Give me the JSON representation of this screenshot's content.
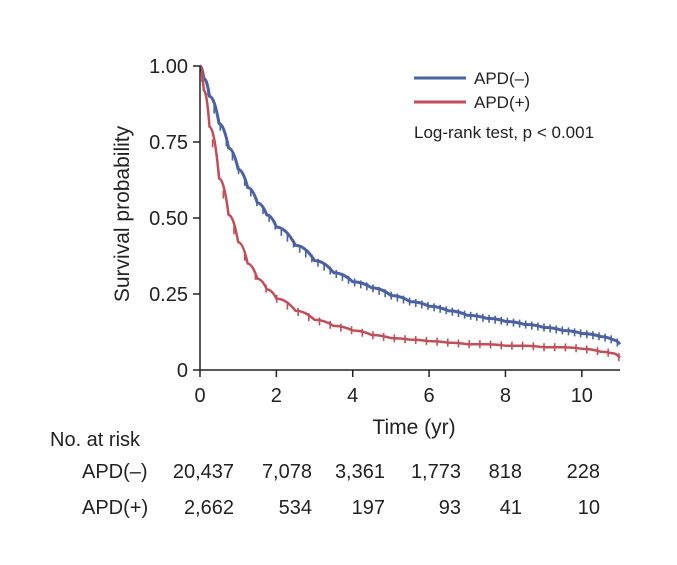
{
  "chart_data": {
    "type": "line",
    "subtype": "kaplan-meier",
    "title": "",
    "xlabel": "Time (yr)",
    "ylabel": "Survival probability",
    "xlim": [
      0,
      11
    ],
    "ylim": [
      0,
      1
    ],
    "x_ticks": [
      0,
      2,
      4,
      6,
      8,
      10
    ],
    "x_tick_labels": [
      "0",
      "2",
      "4",
      "6",
      "8",
      "10"
    ],
    "y_ticks": [
      0,
      0.25,
      0.5,
      0.75,
      1.0
    ],
    "y_tick_labels": [
      "0",
      "0.25",
      "0.50",
      "0.75",
      "1.00"
    ],
    "grid": false,
    "legend_position": "top-right",
    "annotation": "Log-rank test, p < 0.001",
    "series": [
      {
        "name": "APD(–)",
        "color": "#4a62a3",
        "x": [
          0,
          0.1,
          0.25,
          0.5,
          0.75,
          1.0,
          1.25,
          1.5,
          1.75,
          2.0,
          2.5,
          3.0,
          3.5,
          4.0,
          4.5,
          5.0,
          5.5,
          6.0,
          6.5,
          7.0,
          7.5,
          8.0,
          8.5,
          9.0,
          9.5,
          10.0,
          10.5,
          10.8,
          11.0
        ],
        "y": [
          1.0,
          0.96,
          0.9,
          0.81,
          0.73,
          0.66,
          0.6,
          0.55,
          0.51,
          0.47,
          0.41,
          0.36,
          0.32,
          0.29,
          0.27,
          0.245,
          0.225,
          0.21,
          0.195,
          0.18,
          0.17,
          0.16,
          0.15,
          0.14,
          0.13,
          0.12,
          0.11,
          0.1,
          0.085
        ]
      },
      {
        "name": "APD(+)",
        "color": "#c14e58",
        "x": [
          0,
          0.1,
          0.25,
          0.5,
          0.75,
          1.0,
          1.25,
          1.5,
          1.75,
          2.0,
          2.5,
          3.0,
          3.5,
          4.0,
          4.5,
          5.0,
          5.5,
          6.0,
          6.5,
          7.0,
          7.5,
          8.0,
          8.5,
          9.0,
          9.5,
          10.0,
          10.5,
          10.8,
          11.0
        ],
        "y": [
          1.0,
          0.92,
          0.8,
          0.63,
          0.51,
          0.42,
          0.35,
          0.3,
          0.265,
          0.235,
          0.195,
          0.165,
          0.145,
          0.13,
          0.115,
          0.105,
          0.1,
          0.095,
          0.09,
          0.085,
          0.085,
          0.08,
          0.08,
          0.075,
          0.075,
          0.07,
          0.06,
          0.055,
          0.04
        ]
      }
    ]
  },
  "risk_table": {
    "title": "No. at risk",
    "rows": [
      {
        "label": "APD(–)",
        "values": [
          "20,437",
          "7,078",
          "3,361",
          "1,773",
          "818",
          "228"
        ]
      },
      {
        "label": "APD(+)",
        "values": [
          "2,662",
          "534",
          "197",
          "93",
          "41",
          "10"
        ]
      }
    ]
  }
}
